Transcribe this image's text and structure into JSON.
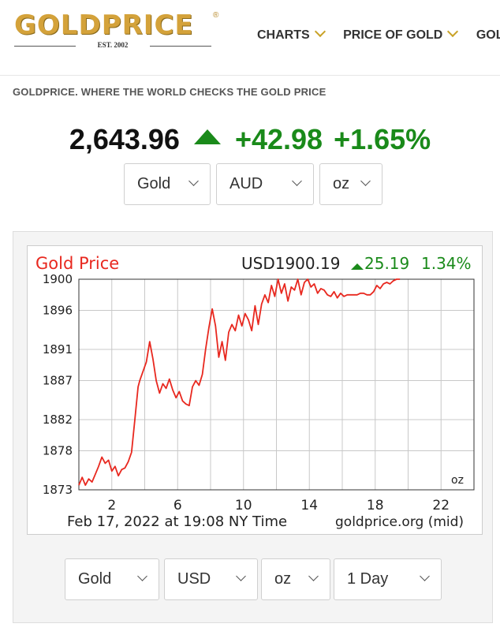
{
  "header": {
    "logo_text": "GOLDPRICE",
    "logo_reg": "®",
    "logo_est": "EST. 2002",
    "nav": [
      {
        "label": "CHARTS"
      },
      {
        "label": "PRICE OF GOLD"
      },
      {
        "label": "GOLD"
      }
    ]
  },
  "tagline": "GOLDPRICE.  WHERE THE WORLD CHECKS THE GOLD PRICE",
  "price": {
    "value": "2,643.96",
    "change": "+42.98",
    "change_pct": "+1.65%"
  },
  "top_selectors": {
    "metal": "Gold",
    "currency": "AUD",
    "unit": "oz"
  },
  "chart_widget": {
    "title": "Gold Price",
    "current": "USD1900.19",
    "change": "25.19",
    "change_pct": "1.34%",
    "unit": "oz",
    "footer_left": "Feb 17, 2022 at 19:08 NY Time",
    "footer_right": "goldprice.org (mid)"
  },
  "bottom_selectors": {
    "metal": "Gold",
    "currency": "USD",
    "unit": "oz",
    "period": "1 Day"
  },
  "chart_data": {
    "type": "line",
    "ylim": [
      1873,
      1900
    ],
    "xlim": [
      0,
      24
    ],
    "y_ticks": [
      "1900",
      "1896",
      "1891",
      "1887",
      "1882",
      "1878",
      "1873"
    ],
    "x_ticks": [
      "2",
      "6",
      "10",
      "14",
      "18",
      "22"
    ],
    "grid": true,
    "series_color": "#e8281f",
    "series": [
      {
        "x": [
          0,
          0.2,
          0.4,
          0.6,
          0.8,
          1.0,
          1.2,
          1.4,
          1.6,
          1.8,
          2.0,
          2.2,
          2.4,
          2.6,
          2.8,
          3.0,
          3.2,
          3.4,
          3.6,
          3.7,
          3.9,
          4.1,
          4.3,
          4.5,
          4.7,
          4.9,
          5.1,
          5.3,
          5.5,
          5.7,
          5.9,
          6.1,
          6.3,
          6.5,
          6.7,
          6.9,
          7.1,
          7.3,
          7.5,
          7.7,
          7.9,
          8.1,
          8.3,
          8.5,
          8.7,
          8.9,
          9.1,
          9.3,
          9.5,
          9.7,
          9.9,
          10.1,
          10.3,
          10.5,
          10.7,
          10.9,
          11.1,
          11.3,
          11.5,
          11.7,
          11.9,
          12.1,
          12.3,
          12.5,
          12.7,
          12.9,
          13.1,
          13.3,
          13.5,
          13.7,
          13.9,
          14.1,
          14.3,
          14.5,
          14.7,
          14.9,
          15.1,
          15.3,
          15.5,
          15.7,
          15.9,
          16.1,
          16.3,
          16.5,
          16.7,
          16.9,
          17.1,
          17.3,
          17.5,
          17.7,
          17.9,
          18.1,
          18.3,
          18.5,
          18.7,
          18.9,
          19.1,
          19.3,
          19.5
        ],
        "y": [
          1873.6,
          1874.6,
          1873.6,
          1874.4,
          1874.0,
          1875.0,
          1876.0,
          1877.2,
          1876.4,
          1876.8,
          1875.4,
          1876.0,
          1874.8,
          1875.6,
          1875.8,
          1876.6,
          1877.8,
          1882.0,
          1886.2,
          1887.0,
          1888.2,
          1889.4,
          1892.0,
          1889.8,
          1887.0,
          1885.4,
          1886.6,
          1886.0,
          1887.2,
          1885.8,
          1884.8,
          1885.6,
          1884.4,
          1884.0,
          1883.8,
          1886.2,
          1887.0,
          1886.4,
          1887.8,
          1891.0,
          1893.8,
          1896.2,
          1894.0,
          1890.0,
          1892.0,
          1889.6,
          1893.2,
          1894.2,
          1893.4,
          1895.4,
          1894.0,
          1895.6,
          1894.8,
          1893.4,
          1896.6,
          1894.2,
          1896.8,
          1898.0,
          1897.0,
          1899.2,
          1897.8,
          1900.0,
          1898.2,
          1899.4,
          1897.2,
          1899.0,
          1898.6,
          1900.0,
          1898.0,
          1899.6,
          1900.0,
          1899.0,
          1899.4,
          1898.2,
          1898.8,
          1898.6,
          1898.0,
          1897.8,
          1898.4,
          1897.6,
          1898.2,
          1897.8,
          1898.0,
          1898.0,
          1898.0,
          1898.0,
          1898.2,
          1898.2,
          1898.0,
          1898.0,
          1898.4,
          1899.2,
          1898.8,
          1899.4,
          1899.6,
          1899.4,
          1899.8,
          1900.0,
          1900.0
        ]
      }
    ]
  }
}
